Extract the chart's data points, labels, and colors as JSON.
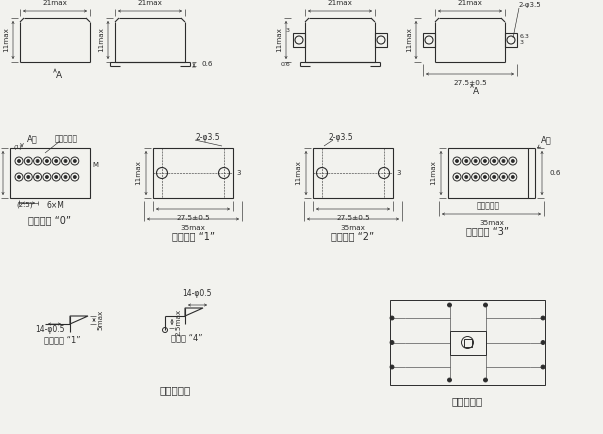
{
  "bg_color": "#f2f2ee",
  "lc": "#2c2c2c",
  "lw": 0.8,
  "dlw": 0.45,
  "tlw": 0.4,
  "fs_dim": 5.2,
  "fs_label": 6.5,
  "fs_caption": 7.0,
  "labels": {
    "A_dir": "A向",
    "A": "A",
    "colored_ins": "着色绝缘子",
    "m0": "安装方式 “0”",
    "m1": "安装方式 “1”",
    "m2": "安装方式 “2”",
    "m3": "安装方式 “3”",
    "lead": "引出端型式",
    "circuit": "底覆电路图",
    "sp1": "焊针式： “1”",
    "sp4": "焊钉式 “4”",
    "21max": "21max",
    "11max": "11max",
    "06": "0.6",
    "3": "3",
    "275": "27.5±0.5",
    "35max": "35max",
    "2phi35": "2-φ3.5",
    "14phi05": "14-φ0.5",
    "5max": "5max",
    "25max": "2.5max",
    "6M": "6×M",
    "25": "(2.5)",
    "M": "M",
    "1t": "(1)"
  }
}
